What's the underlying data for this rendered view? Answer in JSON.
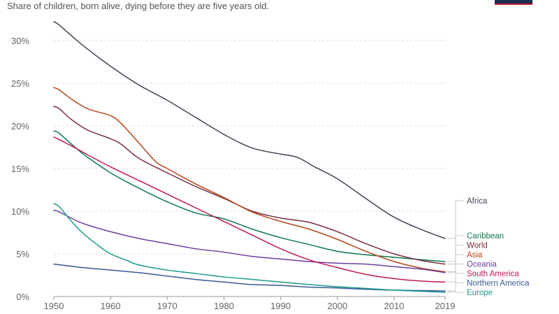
{
  "subtitle": "Share of children, born alive, dying before they are five years old.",
  "chart_data": {
    "type": "line",
    "title": "",
    "subtitle": "Share of children, born alive, dying before they are five years old.",
    "xlabel": "",
    "ylabel": "",
    "xlim": [
      1950,
      2019
    ],
    "ylim": [
      0,
      33
    ],
    "x_ticks": [
      {
        "value": 1950,
        "label": "1950"
      },
      {
        "value": 1960,
        "label": "1960"
      },
      {
        "value": 1970,
        "label": "1970"
      },
      {
        "value": 1980,
        "label": "1980"
      },
      {
        "value": 1990,
        "label": "1990"
      },
      {
        "value": 2000,
        "label": "2000"
      },
      {
        "value": 2010,
        "label": "2010"
      },
      {
        "value": 2019,
        "label": "2019"
      }
    ],
    "y_ticks": [
      {
        "value": 0,
        "label": "0%"
      },
      {
        "value": 5,
        "label": "5%"
      },
      {
        "value": 10,
        "label": "10%"
      },
      {
        "value": 15,
        "label": "15%"
      },
      {
        "value": 20,
        "label": "20%"
      },
      {
        "value": 25,
        "label": "25%"
      },
      {
        "value": 30,
        "label": "30%"
      }
    ],
    "gridlines": "horizontal dashed",
    "legend": "right, end-of-line labels",
    "series": [
      {
        "name": "Africa",
        "color": "#3f4653",
        "points": [
          [
            1950,
            32.2
          ],
          [
            1951,
            31.8
          ],
          [
            1955,
            29.5
          ],
          [
            1960,
            27.0
          ],
          [
            1965,
            24.8
          ],
          [
            1970,
            23.0
          ],
          [
            1975,
            21.0
          ],
          [
            1980,
            19.0
          ],
          [
            1985,
            17.4
          ],
          [
            1990,
            16.7
          ],
          [
            1993,
            16.3
          ],
          [
            1996,
            15.2
          ],
          [
            2000,
            13.8
          ],
          [
            2005,
            11.5
          ],
          [
            2010,
            9.3
          ],
          [
            2015,
            7.8
          ],
          [
            2019,
            6.8
          ]
        ]
      },
      {
        "name": "Caribbean",
        "color": "#0f7a4e",
        "points": [
          [
            1950,
            19.4
          ],
          [
            1951,
            19.1
          ],
          [
            1955,
            16.8
          ],
          [
            1960,
            14.5
          ],
          [
            1965,
            12.7
          ],
          [
            1970,
            11.1
          ],
          [
            1975,
            9.8
          ],
          [
            1980,
            9.1
          ],
          [
            1985,
            7.9
          ],
          [
            1990,
            6.9
          ],
          [
            1995,
            6.1
          ],
          [
            2000,
            5.3
          ],
          [
            2005,
            4.9
          ],
          [
            2010,
            4.6
          ],
          [
            2015,
            4.3
          ],
          [
            2019,
            4.1
          ]
        ]
      },
      {
        "name": "World",
        "color": "#7a2f3f",
        "points": [
          [
            1950,
            22.3
          ],
          [
            1951,
            22.0
          ],
          [
            1953,
            20.8
          ],
          [
            1956,
            19.5
          ],
          [
            1960,
            18.5
          ],
          [
            1962,
            17.8
          ],
          [
            1965,
            16.2
          ],
          [
            1970,
            14.5
          ],
          [
            1975,
            12.9
          ],
          [
            1980,
            11.5
          ],
          [
            1985,
            10.0
          ],
          [
            1990,
            9.2
          ],
          [
            1995,
            8.7
          ],
          [
            2000,
            7.6
          ],
          [
            2005,
            6.2
          ],
          [
            2010,
            5.0
          ],
          [
            2015,
            4.2
          ],
          [
            2019,
            3.8
          ]
        ]
      },
      {
        "name": "Asia",
        "color": "#b5461c",
        "points": [
          [
            1950,
            24.5
          ],
          [
            1951,
            24.2
          ],
          [
            1953,
            23.2
          ],
          [
            1956,
            22.0
          ],
          [
            1960,
            21.2
          ],
          [
            1962,
            20.2
          ],
          [
            1965,
            18.0
          ],
          [
            1968,
            15.8
          ],
          [
            1970,
            15.0
          ],
          [
            1975,
            13.2
          ],
          [
            1980,
            11.6
          ],
          [
            1985,
            9.9
          ],
          [
            1990,
            8.8
          ],
          [
            1995,
            7.9
          ],
          [
            2000,
            6.7
          ],
          [
            2005,
            5.3
          ],
          [
            2010,
            4.1
          ],
          [
            2015,
            3.3
          ],
          [
            2019,
            2.9
          ]
        ]
      },
      {
        "name": "Oceania",
        "color": "#6b3fa0",
        "points": [
          [
            1950,
            10.1
          ],
          [
            1951,
            9.9
          ],
          [
            1955,
            8.6
          ],
          [
            1960,
            7.6
          ],
          [
            1965,
            6.8
          ],
          [
            1970,
            6.2
          ],
          [
            1975,
            5.6
          ],
          [
            1980,
            5.2
          ],
          [
            1985,
            4.7
          ],
          [
            1990,
            4.4
          ],
          [
            1995,
            4.1
          ],
          [
            2000,
            3.9
          ],
          [
            2005,
            3.8
          ],
          [
            2010,
            3.5
          ],
          [
            2015,
            3.2
          ],
          [
            2019,
            2.8
          ]
        ]
      },
      {
        "name": "South America",
        "color": "#c2185b",
        "points": [
          [
            1950,
            18.7
          ],
          [
            1953,
            17.7
          ],
          [
            1956,
            16.6
          ],
          [
            1960,
            15.2
          ],
          [
            1965,
            13.6
          ],
          [
            1970,
            12.0
          ],
          [
            1975,
            10.4
          ],
          [
            1980,
            8.8
          ],
          [
            1985,
            7.2
          ],
          [
            1990,
            5.6
          ],
          [
            1995,
            4.3
          ],
          [
            2000,
            3.4
          ],
          [
            2005,
            2.6
          ],
          [
            2010,
            2.1
          ],
          [
            2015,
            1.8
          ],
          [
            2019,
            1.7
          ]
        ]
      },
      {
        "name": "Northern America",
        "color": "#3b5998",
        "points": [
          [
            1950,
            3.8
          ],
          [
            1955,
            3.4
          ],
          [
            1960,
            3.1
          ],
          [
            1965,
            2.8
          ],
          [
            1970,
            2.4
          ],
          [
            1975,
            2.0
          ],
          [
            1980,
            1.7
          ],
          [
            1985,
            1.4
          ],
          [
            1990,
            1.3
          ],
          [
            1995,
            1.1
          ],
          [
            2000,
            1.0
          ],
          [
            2005,
            0.85
          ],
          [
            2010,
            0.75
          ],
          [
            2015,
            0.7
          ],
          [
            2019,
            0.65
          ]
        ]
      },
      {
        "name": "Europe",
        "color": "#1a9a8a",
        "points": [
          [
            1950,
            10.9
          ],
          [
            1951,
            10.5
          ],
          [
            1953,
            8.9
          ],
          [
            1955,
            7.5
          ],
          [
            1958,
            5.9
          ],
          [
            1960,
            5.0
          ],
          [
            1963,
            4.2
          ],
          [
            1965,
            3.7
          ],
          [
            1970,
            3.1
          ],
          [
            1975,
            2.7
          ],
          [
            1980,
            2.3
          ],
          [
            1985,
            2.0
          ],
          [
            1990,
            1.7
          ],
          [
            1995,
            1.4
          ],
          [
            2000,
            1.15
          ],
          [
            2005,
            0.95
          ],
          [
            2010,
            0.75
          ],
          [
            2015,
            0.6
          ],
          [
            2019,
            0.5
          ]
        ]
      }
    ]
  }
}
